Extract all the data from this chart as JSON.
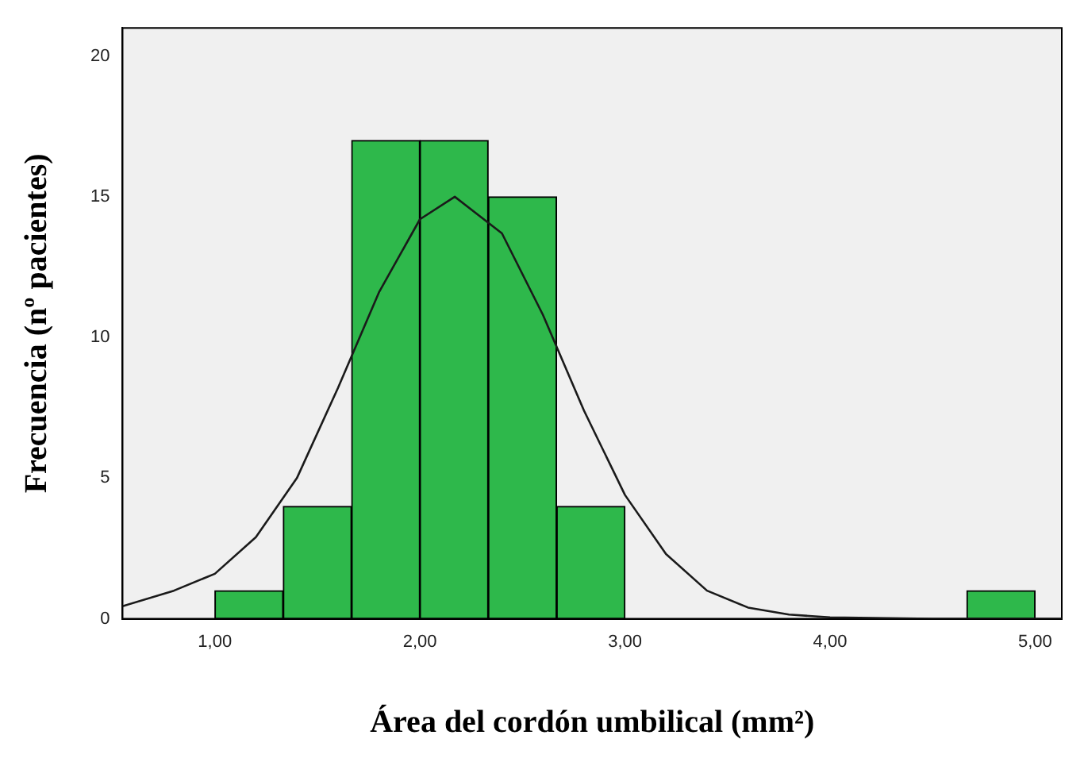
{
  "chart_data": {
    "type": "histogram",
    "xlabel": "Área del cordón umbilical (mm²)",
    "ylabel": "Frecuencia (nº pacientes)",
    "bins": [
      1,
      1.333,
      1.667,
      2,
      2.333,
      2.667,
      3,
      3.333,
      3.667,
      4,
      4.333,
      4.667,
      5
    ],
    "values": [
      1,
      4,
      17,
      17,
      15,
      4,
      0,
      0,
      0,
      0,
      0,
      1
    ],
    "color": "#2eb84b",
    "series": [
      {
        "type": "line",
        "color": "#1a1a1a",
        "x": [
          0.55,
          0.8,
          1.0,
          1.2,
          1.4,
          1.6,
          1.8,
          2.0,
          2.17,
          2.4,
          2.6,
          2.8,
          3.0,
          3.2,
          3.4,
          3.6,
          3.8,
          4.0,
          4.5,
          5.13
        ],
        "values": [
          0.45,
          1.0,
          1.6,
          2.9,
          5.0,
          8.2,
          11.6,
          14.2,
          15,
          13.7,
          10.8,
          7.4,
          4.4,
          2.3,
          1.0,
          0.4,
          0.15,
          0.05,
          0,
          0
        ]
      }
    ],
    "xlim": [
      0.55,
      5.13
    ],
    "xticks": [
      {
        "value": 1,
        "label": "1,00"
      },
      {
        "value": 2,
        "label": "2,00"
      },
      {
        "value": 3,
        "label": "3,00"
      },
      {
        "value": 4,
        "label": "4,00"
      },
      {
        "value": 5,
        "label": "5,00"
      }
    ],
    "ylim": [
      0,
      21
    ],
    "yticks": [
      0,
      5,
      10,
      15,
      20
    ]
  }
}
